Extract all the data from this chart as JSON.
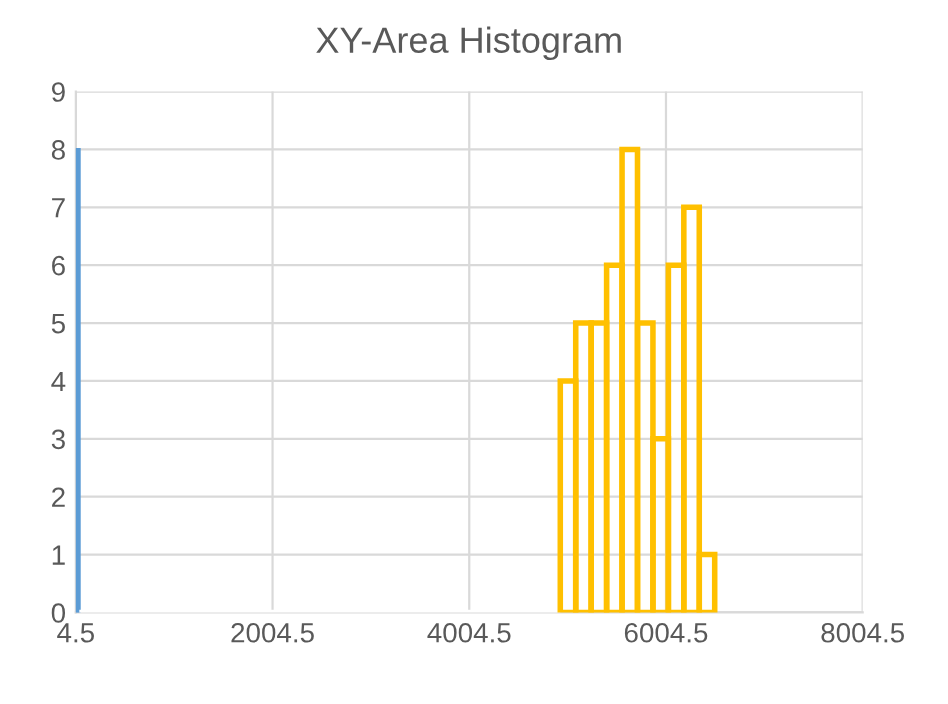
{
  "chart_data": {
    "type": "histogram",
    "title": "XY-Area Histogram",
    "bins": [
      4.5,
      40,
      4930,
      5087,
      5244,
      5401,
      5558,
      5715,
      5872,
      6029,
      6186,
      6343,
      6500
    ],
    "values": [
      8,
      0,
      4,
      5,
      5,
      6,
      8,
      5,
      3,
      6,
      7,
      1
    ],
    "colors": [
      "#5b9bd5",
      "#ffffff",
      "#ffc000",
      "#ffc000",
      "#ffc000",
      "#ffc000",
      "#ffc000",
      "#ffc000",
      "#ffc000",
      "#ffc000",
      "#ffc000",
      "#ffc000"
    ],
    "xlim": [
      4.5,
      8004.5
    ],
    "xticks": [
      4.5,
      2004.5,
      4004.5,
      6004.5,
      8004.5
    ],
    "ylim": [
      0,
      9
    ],
    "yticks": [
      0,
      1,
      2,
      3,
      4,
      5,
      6,
      7,
      8,
      9
    ],
    "grid": true
  }
}
